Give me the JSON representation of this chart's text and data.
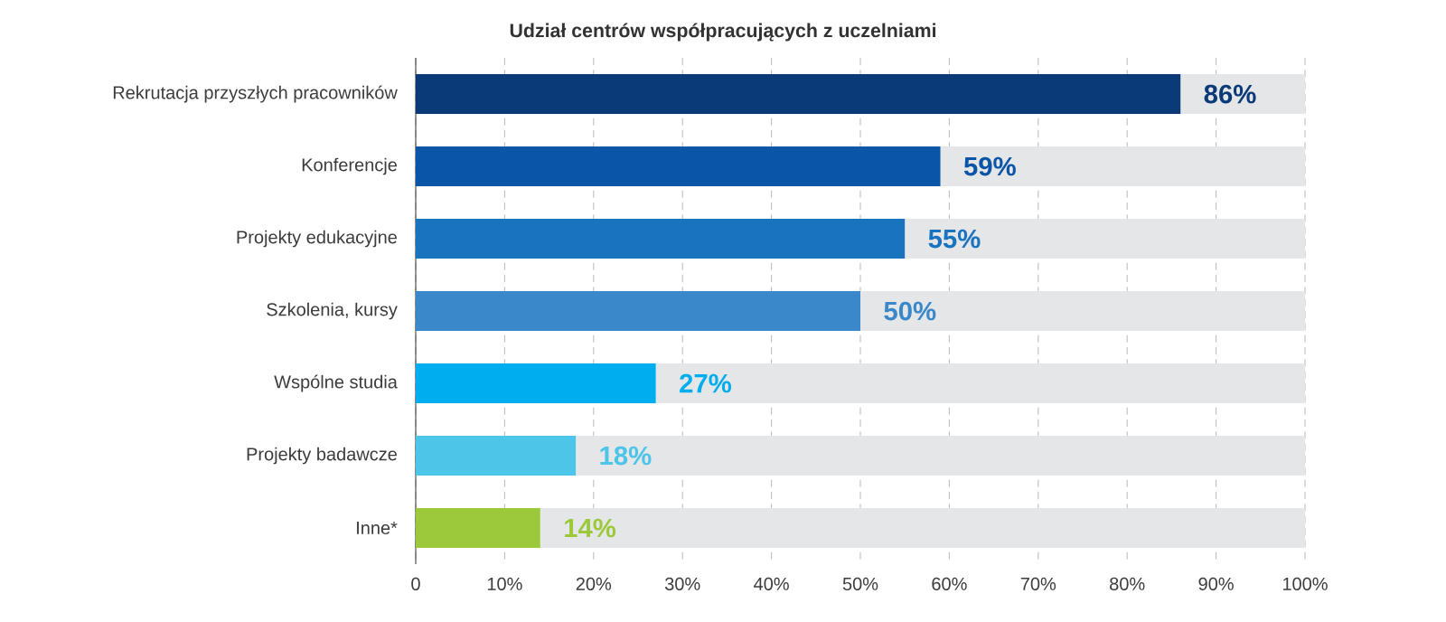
{
  "chart_data": {
    "type": "bar",
    "orientation": "horizontal",
    "stacked": true,
    "title": "Udział centrów współpracujących z uczelniami",
    "categories": [
      "Rekrutacja przyszłych pracowników",
      "Konferencje",
      "Projekty edukacyjne",
      "Szkolenia, kursy",
      "Wspólne studia",
      "Projekty badawcze",
      "Inne*"
    ],
    "series": [
      {
        "values": [
          86,
          59,
          55,
          50,
          27,
          18,
          14
        ],
        "colors": [
          "#0b3a78",
          "#0a55a8",
          "#1a73bf",
          "#3a88c9",
          "#00aeef",
          "#4cc5e8",
          "#9cc93b"
        ],
        "value_labels": [
          "86%",
          "59%",
          "55%",
          "50%",
          "27%",
          "18%",
          "14%"
        ]
      },
      {
        "values": [
          14,
          41,
          45,
          50,
          73,
          82,
          86
        ],
        "color": "#e5e6e8"
      }
    ],
    "xlim": [
      0,
      100
    ],
    "xticks": [
      0,
      {
        "value": 10,
        "label": "10%"
      },
      {
        "value": 20,
        "label": "20%"
      },
      {
        "value": 30,
        "label": "30%"
      },
      {
        "value": 40,
        "label": "40%"
      },
      {
        "value": 50,
        "label": "50%"
      },
      {
        "value": 60,
        "label": "60%"
      },
      {
        "value": 70,
        "label": "70%"
      },
      {
        "value": 80,
        "label": "80%"
      },
      {
        "value": 90,
        "label": "90%"
      },
      {
        "value": 100,
        "label": "100%"
      }
    ],
    "grid": "x"
  }
}
